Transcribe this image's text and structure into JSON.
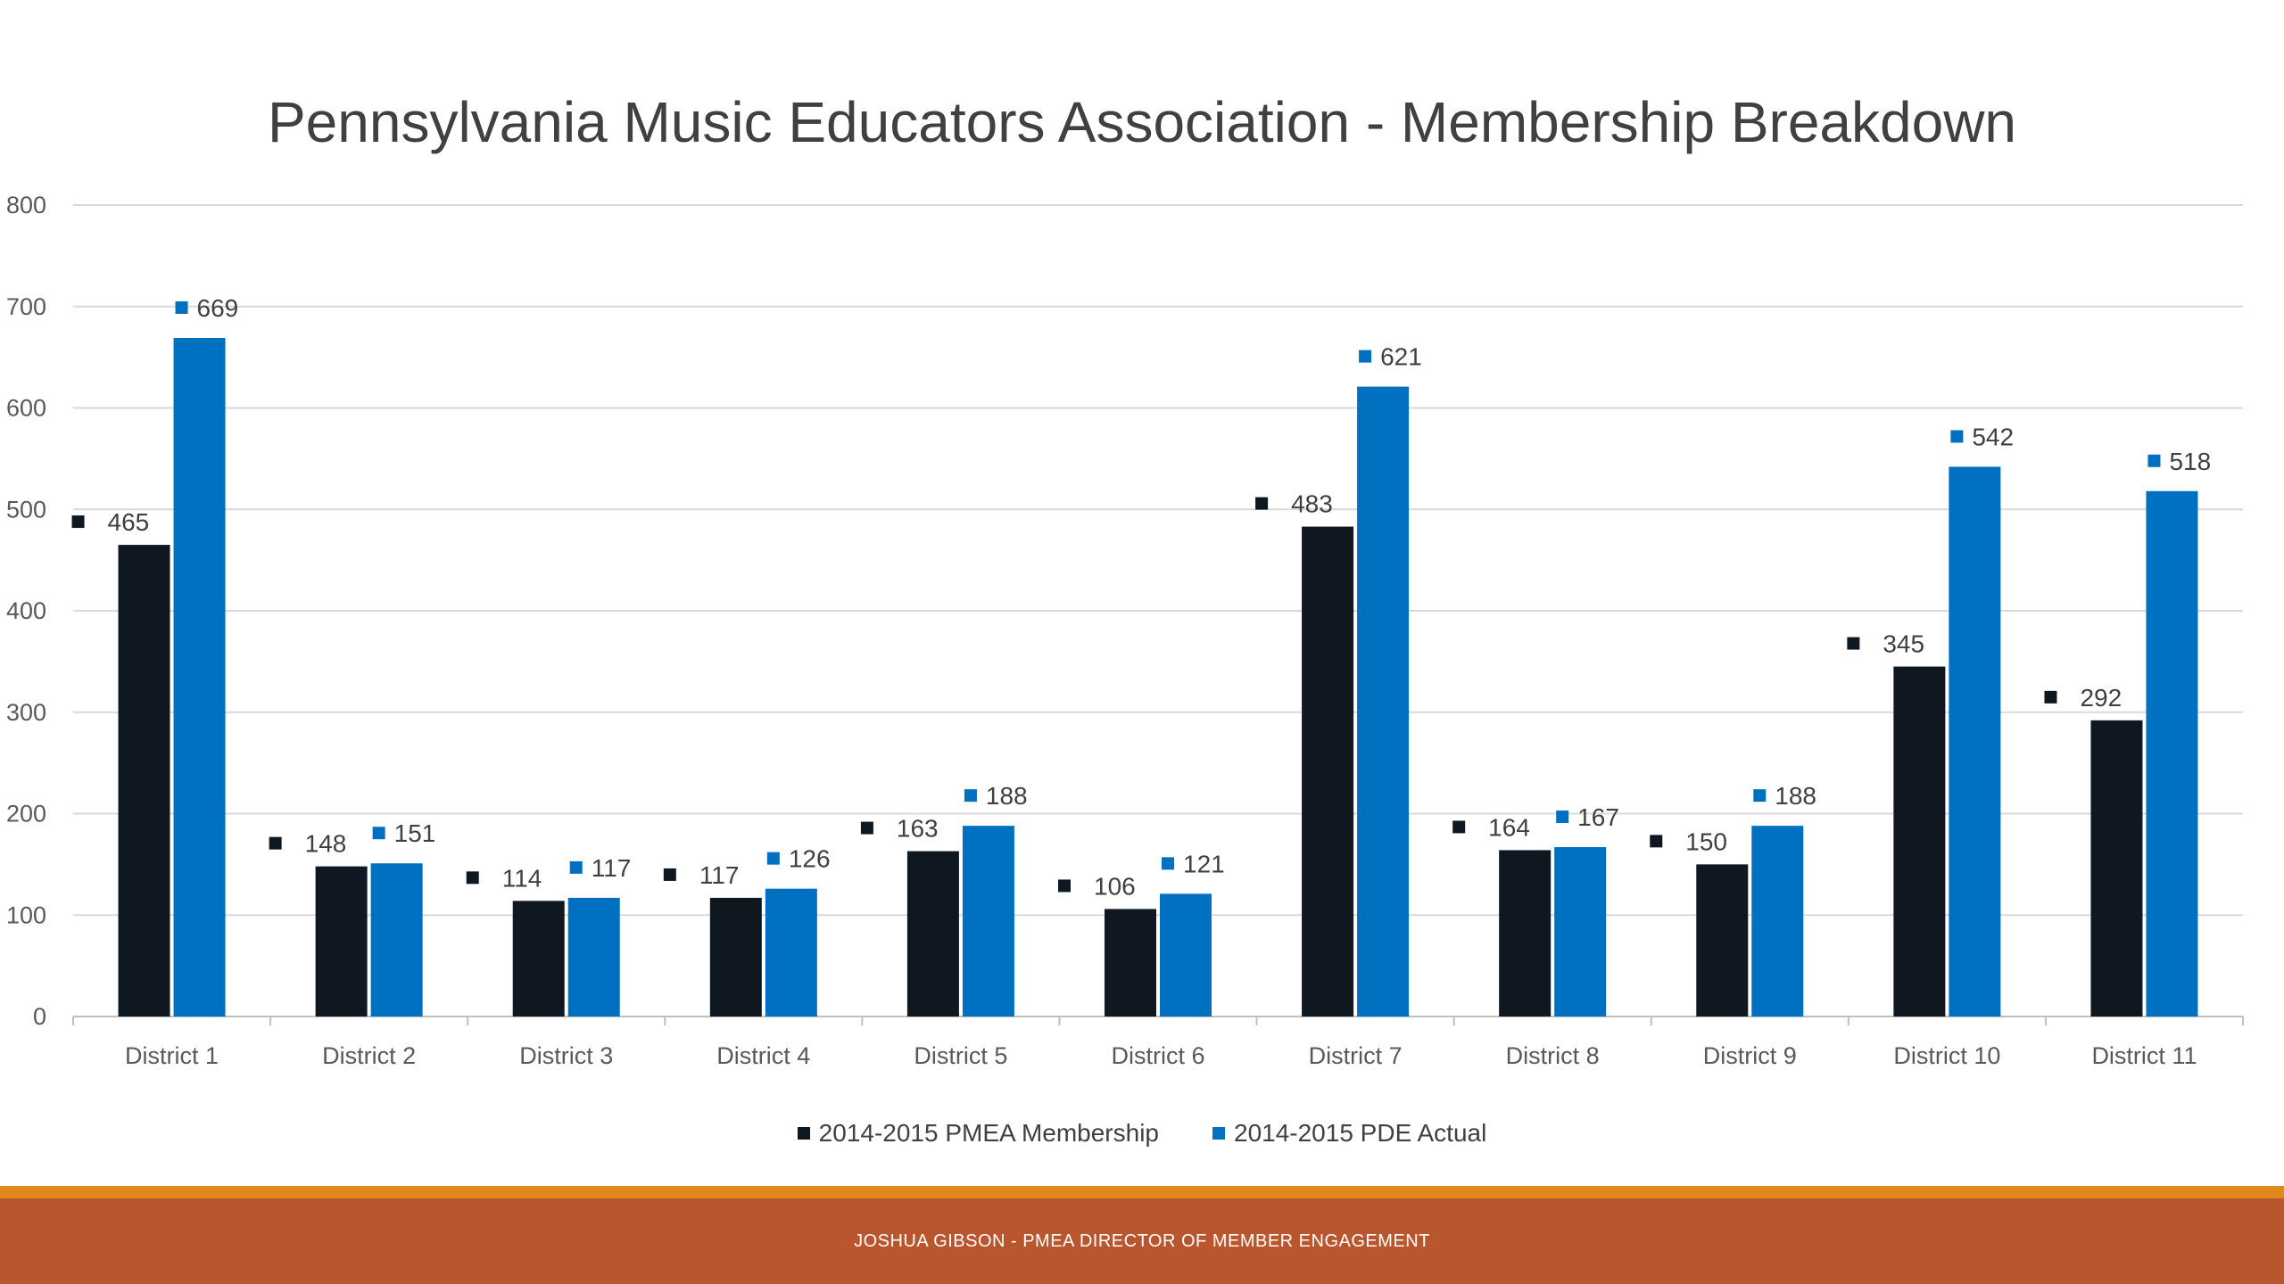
{
  "chart_data": {
    "type": "bar",
    "title": "Pennsylvania Music Educators Association - Membership Breakdown",
    "categories": [
      "District 1",
      "District 2",
      "District 3",
      "District 4",
      "District 5",
      "District 6",
      "District 7",
      "District 8",
      "District 9",
      "District 10",
      "District 11"
    ],
    "series": [
      {
        "name": "2014-2015 PMEA Membership",
        "color": "#0f1820",
        "values": [
          465,
          148,
          114,
          117,
          163,
          106,
          483,
          164,
          150,
          345,
          292
        ]
      },
      {
        "name": "2014-2015 PDE Actual",
        "color": "#0070c0",
        "values": [
          669,
          151,
          117,
          126,
          188,
          121,
          621,
          167,
          188,
          542,
          518
        ]
      }
    ],
    "yticks": [
      "0",
      "100",
      "200",
      "300",
      "400",
      "500",
      "600",
      "700",
      "800"
    ],
    "ylim": [
      0,
      800
    ],
    "grid": true,
    "legend_position": "bottom"
  },
  "footer": {
    "text": "JOSHUA GIBSON - PMEA DIRECTOR OF MEMBER ENGAGEMENT"
  },
  "colors": {
    "footer_bar": "#b9562d",
    "footer_accent": "#e08a1e",
    "gridline": "#d9d9d9"
  }
}
